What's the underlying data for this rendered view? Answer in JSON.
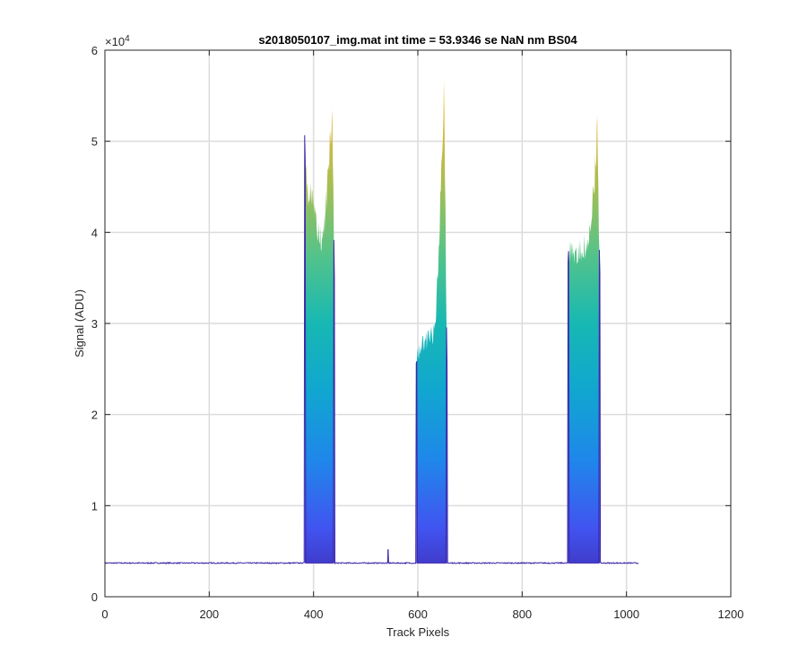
{
  "chart_data": {
    "type": "line",
    "title": "s2018050107_img.mat int time = 53.9346 se  NaN nm BS04",
    "xlabel": "Track Pixels",
    "ylabel": "Signal (ADU)",
    "xlim": [
      0,
      1200
    ],
    "ylim": [
      0,
      60000
    ],
    "x_ticks": [
      0,
      200,
      400,
      600,
      800,
      1000,
      1200
    ],
    "x_tick_labels": [
      "0",
      "200",
      "400",
      "600",
      "800",
      "1000",
      "1200"
    ],
    "y_ticks": [
      0,
      10000,
      20000,
      30000,
      40000,
      50000,
      60000
    ],
    "y_tick_labels": [
      "0",
      "1",
      "2",
      "3",
      "4",
      "5",
      "6"
    ],
    "y_exponent_label": "×10",
    "y_exponent_power": "4",
    "grid": true,
    "baseline": 3700,
    "x_range": [
      0,
      1023
    ],
    "small_spike": {
      "x": 543,
      "value": 5200
    },
    "peaks": [
      {
        "name": "peak-1",
        "x_start": 383,
        "x_end": 440,
        "left_edge_value": 51500,
        "left_plateau": 47800,
        "valley": 41000,
        "max_x": 436,
        "max_value": 56500
      },
      {
        "name": "peak-2",
        "x_start": 597,
        "x_end": 656,
        "left_edge_value": 27500,
        "left_plateau": 28500,
        "valley": 30000,
        "max_x": 650,
        "max_value": 58800
      },
      {
        "name": "peak-3",
        "x_start": 888,
        "x_end": 949,
        "left_edge_value": 39000,
        "left_plateau": 39500,
        "valley": 40000,
        "max_x": 944,
        "max_value": 53000
      }
    ],
    "colormap": [
      "#3e26a8",
      "#4154f0",
      "#1f87ea",
      "#11a6d0",
      "#17b8b3",
      "#54c38a",
      "#a5be53",
      "#e3b83b",
      "#f9d326"
    ]
  }
}
